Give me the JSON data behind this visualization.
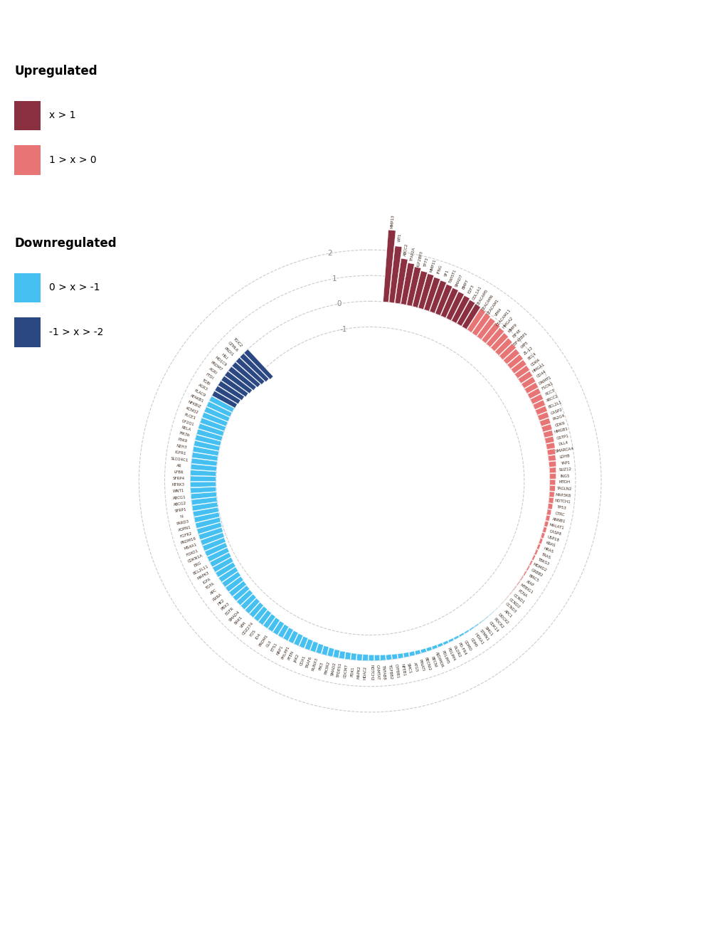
{
  "color_dark_red": "#8B3040",
  "color_light_red": "#E87575",
  "color_light_blue": "#45C0F0",
  "color_dark_blue": "#2B4882",
  "bg_color": "#FFFFFF",
  "legend_title_up": "Upregulated",
  "legend_title_down": "Downregulated",
  "legend_x1": "x > 1",
  "legend_x2": "1 > x > 0",
  "legend_x3": "0 > x > -1",
  "legend_x4": "-1 > x > -2",
  "genes_and_values": [
    [
      "MMP13",
      2.8
    ],
    [
      "WT1",
      2.2
    ],
    [
      "ABCC2",
      1.75
    ],
    [
      "TFAP2A",
      1.62
    ],
    [
      "IGF2BP3",
      1.52
    ],
    [
      "TP73",
      1.42
    ],
    [
      "MMP11",
      1.38
    ],
    [
      "IFNG",
      1.32
    ],
    [
      "SF1",
      1.28
    ],
    [
      "TWIST1",
      1.22
    ],
    [
      "SMAD7",
      1.18
    ],
    [
      "BMP7",
      1.14
    ],
    [
      "E2F3",
      1.1
    ],
    [
      "COL1A1",
      1.05
    ],
    [
      "CEACAM5",
      1.02
    ],
    [
      "CEACAM6",
      0.98
    ],
    [
      "CEACAM1",
      0.94
    ],
    [
      "VIM4",
      0.9
    ],
    [
      "CEACAM11",
      0.86
    ],
    [
      "HMGA2",
      0.82
    ],
    [
      "MMP9",
      0.78
    ],
    [
      "EIF4E",
      0.74
    ],
    [
      "EIF4EBP1",
      0.7
    ],
    [
      "OIP5",
      0.66
    ],
    [
      "ZL-12",
      0.63
    ],
    [
      "BCL4",
      0.6
    ],
    [
      "CDK4",
      0.57
    ],
    [
      "HMGA1",
      0.54
    ],
    [
      "CD44",
      0.52
    ],
    [
      "DNMT1",
      0.5
    ],
    [
      "FSCN1",
      0.48
    ],
    [
      "RCC3",
      0.46
    ],
    [
      "XRCC2",
      0.44
    ],
    [
      "BCL2L1",
      0.42
    ],
    [
      "CASP2",
      0.4
    ],
    [
      "PA2G4",
      0.38
    ],
    [
      "CDK6",
      0.37
    ],
    [
      "HMGB1",
      0.35
    ],
    [
      "GSTP1",
      0.33
    ],
    [
      "DLL4",
      0.32
    ],
    [
      "SMARCA4",
      0.3
    ],
    [
      "LDHB",
      0.28
    ],
    [
      "YAP1",
      0.27
    ],
    [
      "SUZ12",
      0.25
    ],
    [
      "ING5",
      0.24
    ],
    [
      "MTDH",
      0.22
    ],
    [
      "TAGLN2",
      0.21
    ],
    [
      "MAP3K8",
      0.19
    ],
    [
      "NOTCH1",
      0.18
    ],
    [
      "TP53",
      0.17
    ],
    [
      "CTRC",
      0.15
    ],
    [
      "ANNB1",
      0.14
    ],
    [
      "MALAT1",
      0.13
    ],
    [
      "CASP8",
      0.12
    ],
    [
      "USP18",
      0.11
    ],
    [
      "KRAS",
      0.1
    ],
    [
      "HRAS",
      0.09
    ],
    [
      "TRAS",
      0.08
    ],
    [
      "TBKS3",
      0.07
    ],
    [
      "MDMD2",
      0.06
    ],
    [
      "GRBB2",
      0.055
    ],
    [
      "BIRC5",
      0.05
    ],
    [
      "XIAP",
      0.04
    ],
    [
      "MTBIG1",
      0.035
    ],
    [
      "PCNA",
      0.03
    ],
    [
      "CCND1",
      0.025
    ],
    [
      "CCND2",
      0.02
    ],
    [
      "CCND3",
      0.015
    ],
    [
      "APC1",
      -0.01
    ],
    [
      "DOCK2",
      -0.015
    ],
    [
      "ROCK2",
      -0.02
    ],
    [
      "CDK14",
      -0.025
    ],
    [
      "SMG1",
      -0.03
    ],
    [
      "STMN1",
      -0.04
    ],
    [
      "HOXA1",
      -0.05
    ],
    [
      "CDMI",
      -0.06
    ],
    [
      "CDMO",
      -0.07
    ],
    [
      "PD-FR4",
      -0.08
    ],
    [
      "OLDR2",
      -0.09
    ],
    [
      "PDLIM4",
      -0.1
    ],
    [
      "PDLIM5",
      -0.11
    ],
    [
      "AJDIMOR",
      -0.12
    ],
    [
      "BECNI",
      -0.13
    ],
    [
      "BECNI2",
      -0.14
    ],
    [
      "PINATI",
      -0.15
    ],
    [
      "ATG5",
      -0.16
    ],
    [
      "SMC1",
      -0.17
    ],
    [
      "NFEB1",
      -0.18
    ],
    [
      "CYFBB1",
      -0.19
    ],
    [
      "TGFBB2",
      -0.2
    ],
    [
      "TNFAB8",
      -0.21
    ],
    [
      "CAMTAT",
      -0.22
    ],
    [
      "NOTCH2",
      -0.23
    ],
    [
      "HDAC2",
      -0.24
    ],
    [
      "MAPK2",
      -0.25
    ],
    [
      "PDK1",
      -0.26
    ],
    [
      "CDCM7",
      -0.27
    ],
    [
      "TPDES1",
      -0.28
    ],
    [
      "SMAD2",
      -0.3
    ],
    [
      "PIK3R2",
      -0.32
    ],
    [
      "PIK3",
      -0.34
    ],
    [
      "RUNX3",
      -0.36
    ],
    [
      "TRAF6",
      -0.38
    ],
    [
      "CDX1",
      -0.4
    ],
    [
      "JAK2",
      -0.42
    ],
    [
      "PTEN",
      -0.44
    ],
    [
      "PHLPP1",
      -0.46
    ],
    [
      "NRP1",
      -0.48
    ],
    [
      "ETS1",
      -0.5
    ],
    [
      "GLII",
      -0.52
    ],
    [
      "PRDM1",
      -0.54
    ],
    [
      "ID4",
      -0.56
    ],
    [
      "FOS",
      -0.58
    ],
    [
      "CDZ274",
      -0.6
    ],
    [
      "VIM",
      -0.62
    ],
    [
      "BAK1",
      -0.64
    ],
    [
      "SMAD4",
      -0.66
    ],
    [
      "EGFR",
      -0.68
    ],
    [
      "PBX3",
      -0.7
    ],
    [
      "HK2",
      -0.72
    ],
    [
      "RXRA",
      -0.74
    ],
    [
      "APC",
      -0.76
    ],
    [
      "TGFA",
      -0.78
    ],
    [
      "IGFA",
      -0.8
    ],
    [
      "MAPK3",
      -0.82
    ],
    [
      "BCL2L11",
      -0.84
    ],
    [
      "ERG",
      -0.86
    ],
    [
      "CDKN1A",
      -0.88
    ],
    [
      "FOXO1",
      -0.9
    ],
    [
      "MS4A1",
      -0.92
    ],
    [
      "PRDM16",
      -0.94
    ],
    [
      "FGFR2",
      -0.96
    ],
    [
      "AQPN1",
      -0.97
    ],
    [
      "PARD3",
      -0.98
    ],
    [
      "N",
      -0.985
    ],
    [
      "SFRP1",
      -0.988
    ],
    [
      "ABCG2",
      -0.99
    ],
    [
      "ABCG1",
      -0.991
    ],
    [
      "WNT1",
      -0.992
    ],
    [
      "NTRK3",
      -0.993
    ],
    [
      "SFRP4",
      -0.994
    ],
    [
      "LFBR",
      -0.995
    ],
    [
      "AR",
      -0.996
    ],
    [
      "SLCO4C1",
      -0.997
    ],
    [
      "IGFR1",
      -0.998
    ],
    [
      "N2H3",
      -0.999
    ],
    [
      "P3K9",
      -0.9992
    ],
    [
      "PIK3b",
      -0.9994
    ],
    [
      "RELA",
      -0.9996
    ],
    [
      "GF2Q1",
      -0.9997
    ],
    [
      "PLCE1",
      -0.9998
    ],
    [
      "KCNQ2",
      -0.9999
    ],
    [
      "NFKBIZ",
      -0.99995
    ],
    [
      "AFAKB1",
      -0.99997
    ],
    [
      "PLAC9",
      -0.99998
    ],
    [
      "AGR3",
      -1.02
    ],
    [
      "TGBI",
      -1.05
    ],
    [
      "FTDI",
      -1.1
    ],
    [
      "AGRI",
      -1.15
    ],
    [
      "PRDM7",
      -1.2
    ],
    [
      "MO1C9",
      -1.25
    ],
    [
      "HILI",
      -1.3
    ],
    [
      "PRDI1",
      -1.35
    ],
    [
      "GTML6",
      -1.4
    ],
    [
      "TGIC2",
      -1.45
    ]
  ]
}
